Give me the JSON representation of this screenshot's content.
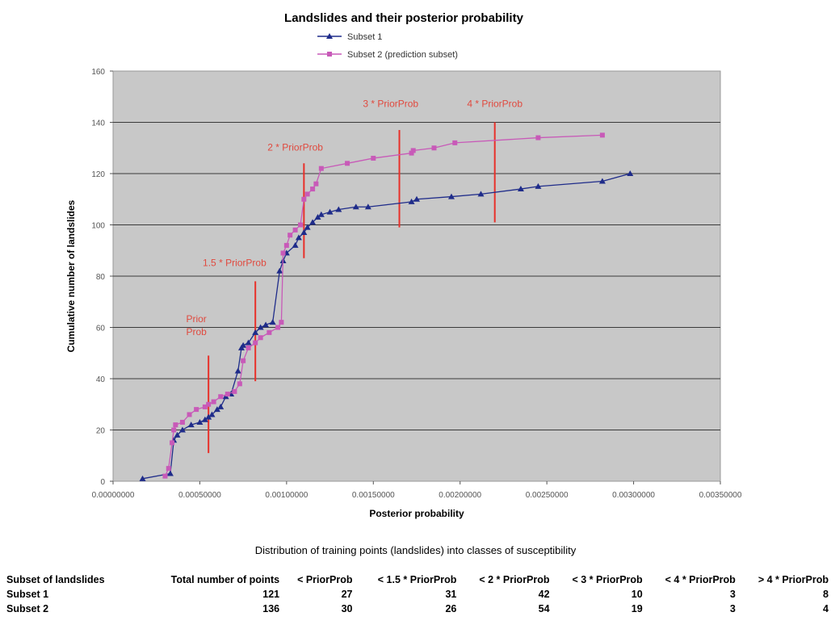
{
  "chart_data": {
    "type": "line",
    "title": "Landslides and their posterior probability",
    "xlabel": "Posterior probability",
    "ylabel": "Cumulative number of landslides",
    "xlim": [
      0,
      0.0035
    ],
    "ylim": [
      0,
      160
    ],
    "x_ticks": [
      "0.00000000",
      "0.00050000",
      "0.00100000",
      "0.00150000",
      "0.00200000",
      "0.00250000",
      "0.00300000",
      "0.00350000"
    ],
    "y_ticks": [
      "0",
      "20",
      "40",
      "60",
      "80",
      "100",
      "120",
      "140",
      "160"
    ],
    "grid": true,
    "legend_position": "top",
    "series": [
      {
        "name": "Subset 1",
        "color": "#1f2c8a",
        "marker": "triangle",
        "x": [
          0.00017,
          0.00033,
          0.00035,
          0.00037,
          0.0004,
          0.00045,
          0.0005,
          0.00053,
          0.00055,
          0.00057,
          0.0006,
          0.00062,
          0.00065,
          0.00068,
          0.00072,
          0.00074,
          0.00075,
          0.00078,
          0.00082,
          0.00085,
          0.00088,
          0.00092,
          0.00096,
          0.00098,
          0.001,
          0.00105,
          0.00107,
          0.0011,
          0.00112,
          0.00115,
          0.00118,
          0.0012,
          0.00125,
          0.0013,
          0.0014,
          0.00147,
          0.00172,
          0.00175,
          0.00195,
          0.00212,
          0.00235,
          0.00245,
          0.00282,
          0.00298
        ],
        "y": [
          1,
          3,
          16,
          18,
          20,
          22,
          23,
          24,
          25,
          26,
          28,
          29,
          33,
          34,
          43,
          52,
          53,
          54,
          58,
          60,
          61,
          62,
          82,
          86,
          89,
          92,
          95,
          97,
          99,
          101,
          103,
          104,
          105,
          106,
          107,
          107,
          109,
          110,
          111,
          112,
          114,
          115,
          117,
          120
        ]
      },
      {
        "name": "Subset 2 (prediction subset)",
        "color": "#c85ab8",
        "marker": "square",
        "x": [
          0.0003,
          0.00032,
          0.00034,
          0.00035,
          0.00036,
          0.0004,
          0.00044,
          0.00048,
          0.00053,
          0.00055,
          0.00058,
          0.00062,
          0.00066,
          0.0007,
          0.00073,
          0.00075,
          0.00078,
          0.00082,
          0.00085,
          0.0009,
          0.00095,
          0.00097,
          0.00098,
          0.001,
          0.00102,
          0.00105,
          0.00108,
          0.0011,
          0.00112,
          0.00115,
          0.00117,
          0.0012,
          0.00135,
          0.0015,
          0.00172,
          0.00173,
          0.00185,
          0.00197,
          0.00245,
          0.00282
        ],
        "y": [
          2,
          5,
          15,
          20,
          22,
          23,
          26,
          28,
          29,
          30,
          31,
          33,
          34,
          35,
          38,
          47,
          52,
          54,
          56,
          58,
          60,
          62,
          89,
          92,
          96,
          98,
          100,
          110,
          112,
          114,
          116,
          122,
          124,
          126,
          128,
          129,
          130,
          132,
          134,
          135
        ]
      }
    ],
    "annotations": [
      {
        "label_lines": [
          "Prior",
          "Prob"
        ],
        "x": 0.00055,
        "y_from": 11,
        "y_to": 49,
        "label_x": 0.00048,
        "label_y": 62
      },
      {
        "label_lines": [
          "1.5 * PriorProb"
        ],
        "x": 0.00082,
        "y_from": 39,
        "y_to": 78,
        "label_x": 0.0007,
        "label_y": 84
      },
      {
        "label_lines": [
          "2 * PriorProb"
        ],
        "x": 0.0011,
        "y_from": 87,
        "y_to": 124,
        "label_x": 0.00105,
        "label_y": 129
      },
      {
        "label_lines": [
          "3 * PriorProb"
        ],
        "x": 0.00165,
        "y_from": 99,
        "y_to": 137,
        "label_x": 0.0016,
        "label_y": 146
      },
      {
        "label_lines": [
          "4 * PriorProb"
        ],
        "x": 0.0022,
        "y_from": 101,
        "y_to": 140,
        "label_x": 0.0022,
        "label_y": 146
      }
    ]
  },
  "distribution": {
    "title": "Distribution of training points (landslides) into classes of susceptibility",
    "headers": [
      "Subset of landslides",
      "Total number of points",
      "< PriorProb",
      "< 1.5 * PriorProb",
      "< 2 * PriorProb",
      "< 3 * PriorProb",
      "< 4 * PriorProb",
      "> 4 * PriorProb"
    ],
    "rows": [
      [
        "Subset 1",
        "121",
        "27",
        "31",
        "42",
        "10",
        "3",
        "8"
      ],
      [
        "Subset 2",
        "136",
        "30",
        "26",
        "54",
        "19",
        "3",
        "4"
      ]
    ]
  }
}
